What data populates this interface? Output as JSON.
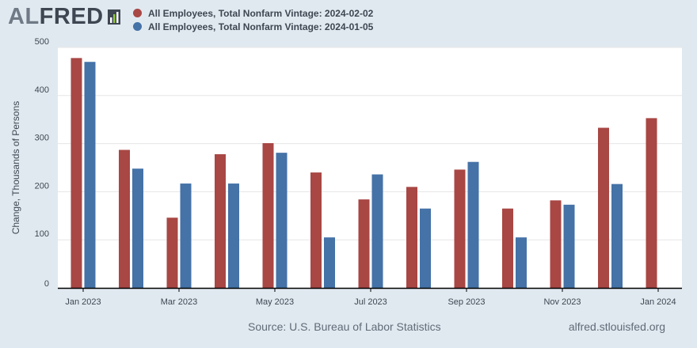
{
  "header": {
    "logo_al": "AL",
    "logo_fred": "FRED"
  },
  "colors": {
    "series1": "#a84744",
    "series2": "#4572a7",
    "plot_bg": "#ffffff",
    "page_bg": "#e1e9f0",
    "grid": "#e6e6e6",
    "text": "#3d4651"
  },
  "legend": [
    {
      "label": "All Employees, Total Nonfarm Vintage: 2024-02-02",
      "color": "#a84744"
    },
    {
      "label": "All Employees, Total Nonfarm Vintage: 2024-01-05",
      "color": "#4572a7"
    }
  ],
  "chart_data": {
    "type": "bar",
    "title": "",
    "xlabel": "",
    "ylabel": "Change, Thousands of Persons",
    "ylim": [
      0,
      500
    ],
    "yticks": [
      0,
      100,
      200,
      300,
      400,
      500
    ],
    "grid": true,
    "legend_position": "top",
    "categories": [
      "2023-01",
      "2023-02",
      "2023-03",
      "2023-04",
      "2023-05",
      "2023-06",
      "2023-07",
      "2023-08",
      "2023-09",
      "2023-10",
      "2023-11",
      "2023-12",
      "2024-01"
    ],
    "xtick_labels": [
      {
        "index": 0,
        "label": "Jan 2023"
      },
      {
        "index": 2,
        "label": "Mar 2023"
      },
      {
        "index": 4,
        "label": "May 2023"
      },
      {
        "index": 6,
        "label": "Jul 2023"
      },
      {
        "index": 8,
        "label": "Sep 2023"
      },
      {
        "index": 10,
        "label": "Nov 2023"
      },
      {
        "index": 12,
        "label": "Jan 2024"
      }
    ],
    "series": [
      {
        "name": "All Employees, Total Nonfarm Vintage: 2024-02-02",
        "color": "#a84744",
        "values": [
          478,
          287,
          146,
          278,
          301,
          240,
          184,
          210,
          246,
          165,
          182,
          333,
          353
        ]
      },
      {
        "name": "All Employees, Total Nonfarm Vintage: 2024-01-05",
        "color": "#4572a7",
        "values": [
          470,
          248,
          217,
          217,
          281,
          105,
          236,
          165,
          262,
          105,
          173,
          216,
          null
        ]
      }
    ]
  },
  "footer": {
    "source": "Source: U.S. Bureau of Labor Statistics",
    "site": "alfred.stlouisfed.org"
  }
}
